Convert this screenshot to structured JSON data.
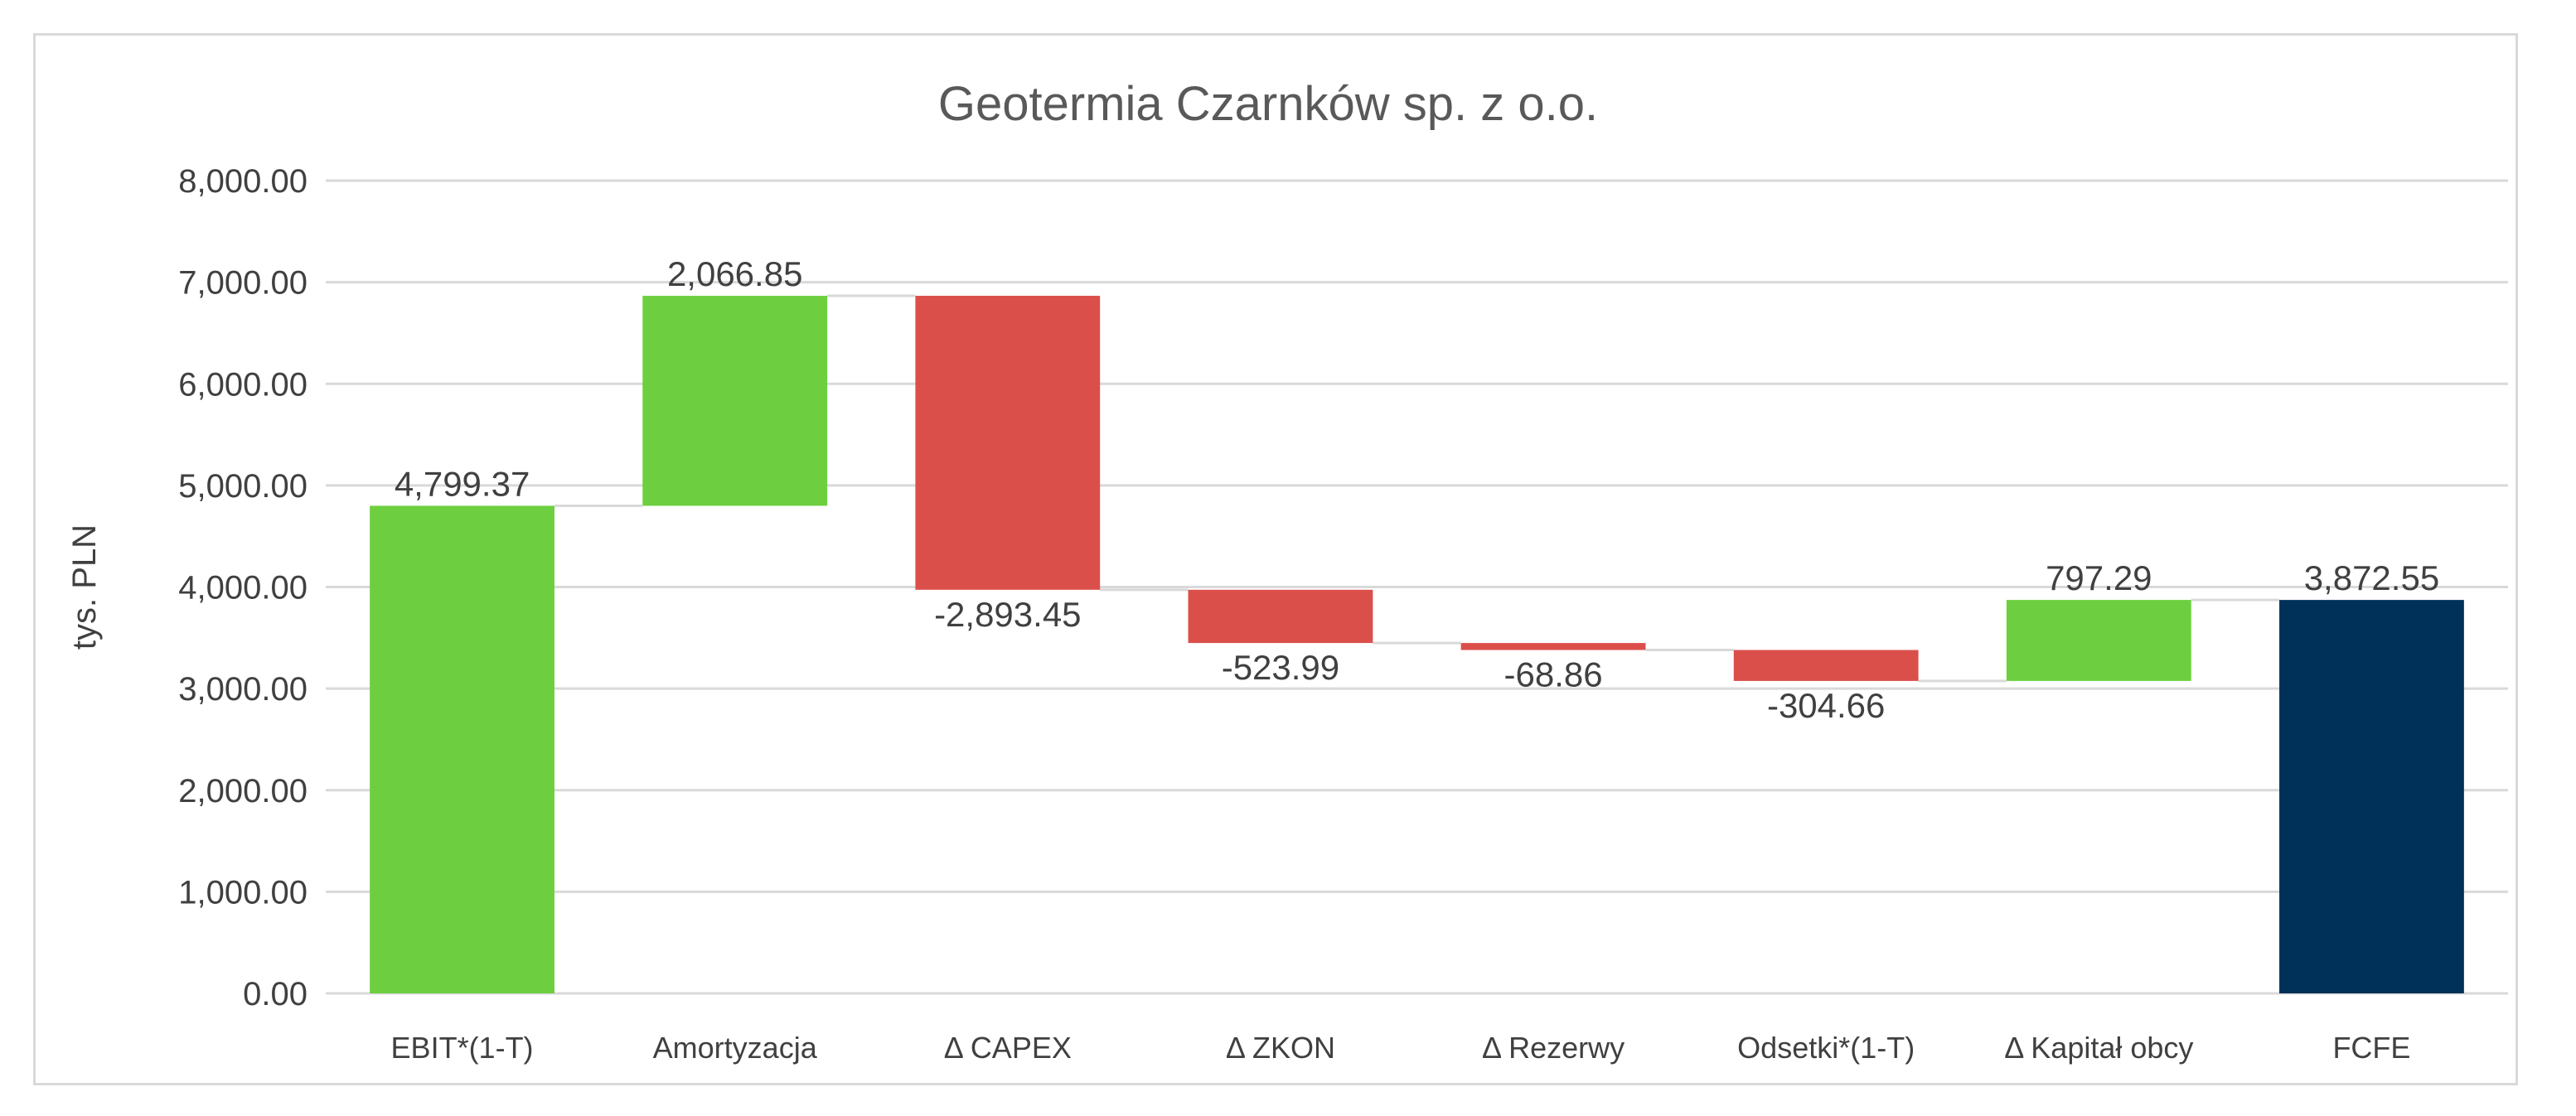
{
  "chart_data": {
    "type": "waterfall",
    "title": "Geotermia Czarnków sp. z o.o.",
    "ylabel": "tys. PLN",
    "xlabel": "",
    "ylim": [
      0,
      8000
    ],
    "yticks": [
      0,
      1000,
      2000,
      3000,
      4000,
      5000,
      6000,
      7000,
      8000
    ],
    "ytick_labels": [
      "0.00",
      "1,000.00",
      "2,000.00",
      "3,000.00",
      "4,000.00",
      "5,000.00",
      "6,000.00",
      "7,000.00",
      "8,000.00"
    ],
    "grid": true,
    "categories": [
      "EBIT*(1-T)",
      "Amortyzacja",
      "Δ CAPEX",
      "Δ ZKON",
      "Δ Rezerwy",
      "Odsetki*(1-T)",
      "Δ Kapitał obcy",
      "FCFE"
    ],
    "values": [
      4799.37,
      2066.85,
      -2893.45,
      -523.99,
      -68.86,
      -304.66,
      797.29,
      3872.55
    ],
    "value_labels": [
      "4,799.37",
      "2,066.85",
      "-2,893.45",
      "-523.99",
      "-68.86",
      "-304.66",
      "797.29",
      "3,872.55"
    ],
    "is_total": [
      false,
      false,
      false,
      false,
      false,
      false,
      false,
      true
    ],
    "colors": {
      "increase": "#6dcf3f",
      "decrease": "#db4f4b",
      "total": "#003158",
      "grid": "#d9d9d9",
      "text": "#404040",
      "title": "#595959"
    }
  }
}
